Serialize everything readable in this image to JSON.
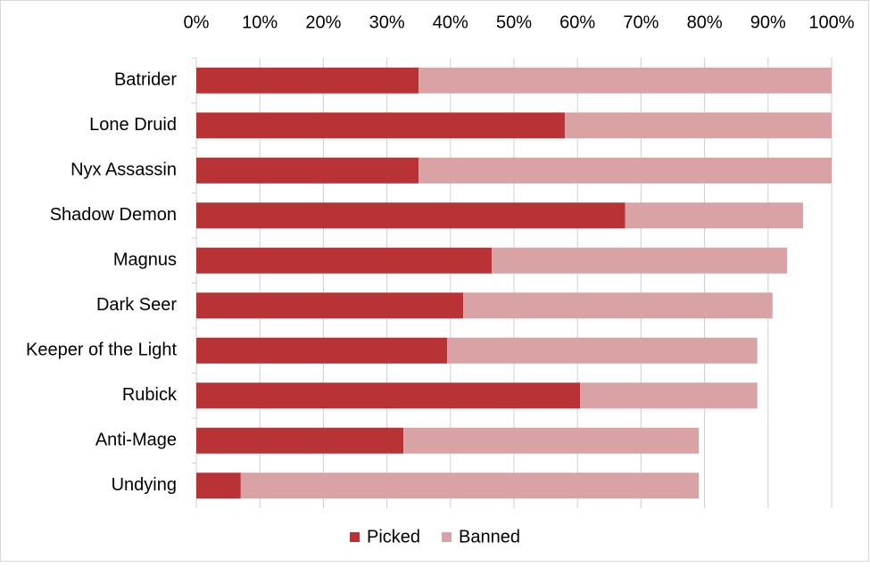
{
  "chart_data": {
    "type": "stacked-barh",
    "categories": [
      "Batrider",
      "Lone Druid",
      "Nyx Assassin",
      "Shadow Demon",
      "Magnus",
      "Dark Seer",
      "Keeper of the Light",
      "Rubick",
      "Anti-Mage",
      "Undying"
    ],
    "series": [
      {
        "name": "Picked",
        "color": "#b83236",
        "values": [
          35,
          58,
          35,
          67.5,
          46.5,
          42,
          39.5,
          60.4,
          32.6,
          7
        ]
      },
      {
        "name": "Banned",
        "color": "#d9a3a5",
        "values": [
          65,
          42,
          65,
          28,
          46.5,
          48.7,
          48.8,
          27.9,
          46.5,
          72.1
        ]
      }
    ],
    "xlim": [
      0,
      100
    ],
    "xticks": [
      {
        "value": 0,
        "label": "0%"
      },
      {
        "value": 10,
        "label": "10%"
      },
      {
        "value": 20,
        "label": "20%"
      },
      {
        "value": 30,
        "label": "30%"
      },
      {
        "value": 40,
        "label": "40%"
      },
      {
        "value": 50,
        "label": "50%"
      },
      {
        "value": 60,
        "label": "60%"
      },
      {
        "value": 70,
        "label": "70%"
      },
      {
        "value": 80,
        "label": "80%"
      },
      {
        "value": 90,
        "label": "90%"
      },
      {
        "value": 100,
        "label": "100%"
      }
    ],
    "grid": true,
    "legend": "bottom"
  }
}
